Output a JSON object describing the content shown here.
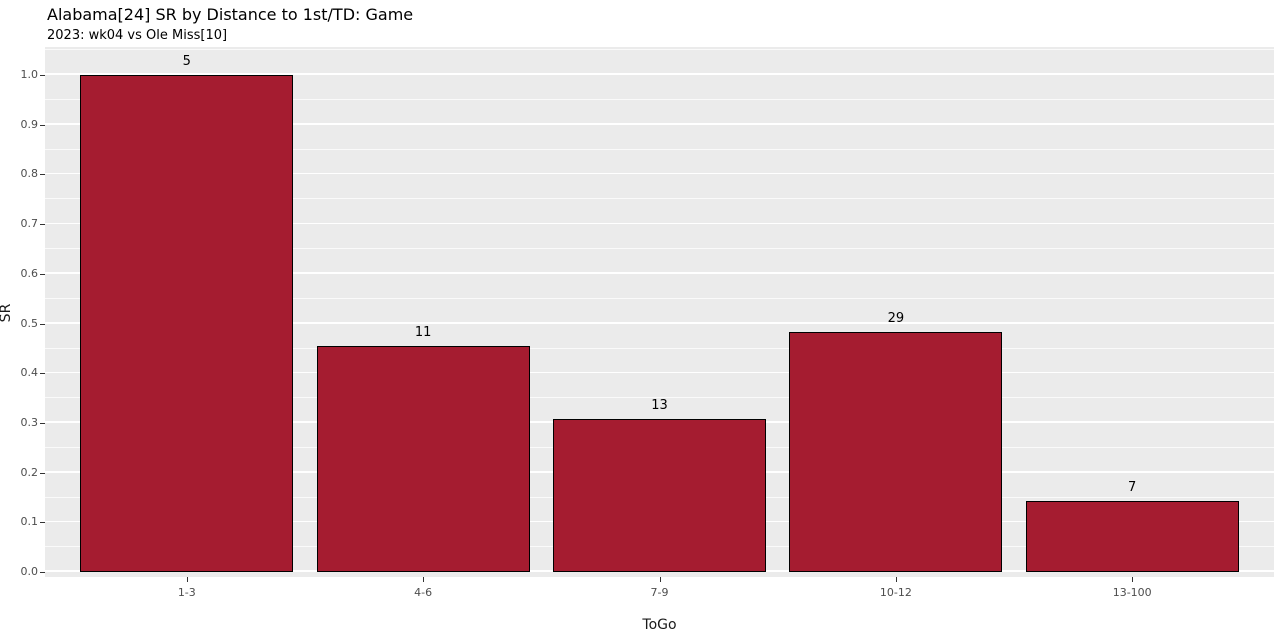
{
  "chart_data": {
    "type": "bar",
    "title": "Alabama[24] SR by Distance to 1st/TD: Game",
    "subtitle": "2023: wk04 vs Ole Miss[10]",
    "xlabel": "ToGo",
    "ylabel": "SR",
    "categories": [
      "1-3",
      "4-6",
      "7-9",
      "10-12",
      "13-100"
    ],
    "values": [
      1.0,
      0.4545,
      0.3077,
      0.4828,
      0.1429
    ],
    "bar_labels": [
      "5",
      "11",
      "13",
      "29",
      "7"
    ],
    "y_ticks": [
      "0.0",
      "0.1",
      "0.2",
      "0.3",
      "0.4",
      "0.5",
      "0.6",
      "0.7",
      "0.8",
      "0.9",
      "1.0"
    ],
    "ylim": [
      0,
      1.0
    ],
    "grid": "major and minor white gridlines on gray panel",
    "legend_position": "none",
    "colors": {
      "bar_fill": "#A51C30",
      "bar_stroke": "#000000",
      "panel_bg": "#EBEBEB",
      "grid_color": "#FFFFFF",
      "tick_text": "#4D4D4D",
      "title_text": "#000000"
    }
  }
}
